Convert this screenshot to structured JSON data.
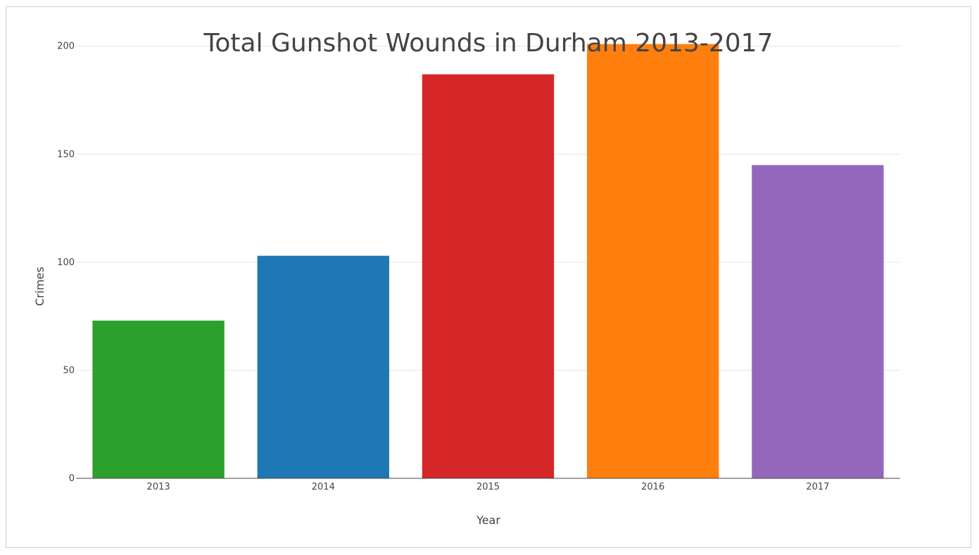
{
  "chart_data": {
    "type": "bar",
    "title": "Total Gunshot Wounds in Durham 2013-2017",
    "xlabel": "Year",
    "ylabel": "Crimes",
    "categories": [
      "2013",
      "2014",
      "2015",
      "2016",
      "2017"
    ],
    "values": [
      73,
      103,
      187,
      201,
      145
    ],
    "colors": [
      "#2ca02c",
      "#1f77b4",
      "#d62728",
      "#ff7f0e",
      "#9467bd"
    ],
    "ylim": [
      0,
      210
    ],
    "yticks": [
      0,
      50,
      100,
      150,
      200
    ],
    "grid": true,
    "legend": "none"
  }
}
